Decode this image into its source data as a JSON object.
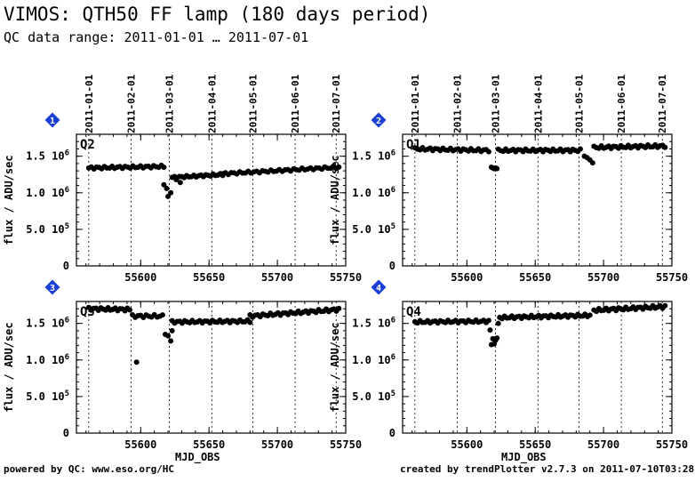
{
  "header": {
    "title": "VIMOS: QTH50 FF lamp (180 days period)",
    "subtitle": "QC data range: 2011-01-01 … 2011-07-01"
  },
  "footer": {
    "left": "powered by QC: www.eso.org/HC",
    "right": "created by trendPlotter v2.7.3 on 2011-07-10T03:28:38"
  },
  "colors": {
    "marker": "#000000",
    "badge": "#1a3fd6",
    "axis": "#000000"
  },
  "chart_data": {
    "type": "scatter",
    "xlabel": "MJD_OBS",
    "ylabel": "flux / ADU/sec",
    "xlim": [
      55553,
      55750
    ],
    "ylim": [
      0,
      1800000
    ],
    "x_ticks": [
      55600,
      55650,
      55700,
      55750
    ],
    "y_ticks": [
      {
        "v": 0,
        "label": "0"
      },
      {
        "v": 500000,
        "label": "5.0 10⁵"
      },
      {
        "v": 1000000,
        "label": "1.0 10⁶"
      },
      {
        "v": 1500000,
        "label": "1.5 10⁶"
      }
    ],
    "date_markers": [
      {
        "mjd": 55562,
        "label": "2011-01-01"
      },
      {
        "mjd": 55593,
        "label": "2011-02-01"
      },
      {
        "mjd": 55621,
        "label": "2011-03-01"
      },
      {
        "mjd": 55652,
        "label": "2011-04-01"
      },
      {
        "mjd": 55682,
        "label": "2011-05-01"
      },
      {
        "mjd": 55713,
        "label": "2011-06-01"
      },
      {
        "mjd": 55743,
        "label": "2011-07-01"
      }
    ],
    "panels": [
      {
        "badge": "1",
        "name": "Q2",
        "segments": [
          {
            "x0": 55562,
            "x1": 55617,
            "y0": 1340000,
            "y1": 1360000,
            "n": 30
          },
          {
            "x0": 55623,
            "x1": 55660,
            "y0": 1210000,
            "y1": 1250000,
            "n": 22
          },
          {
            "x0": 55660,
            "x1": 55745,
            "y0": 1260000,
            "y1": 1350000,
            "n": 42
          }
        ],
        "points": [
          [
            55617,
            1110000
          ],
          [
            55619,
            1060000
          ],
          [
            55620,
            950000
          ],
          [
            55622,
            1000000
          ],
          [
            55626,
            1180000
          ],
          [
            55629,
            1140000
          ]
        ]
      },
      {
        "badge": "2",
        "name": "Q1",
        "segments": [
          {
            "x0": 55562,
            "x1": 55616,
            "y0": 1600000,
            "y1": 1580000,
            "n": 30
          },
          {
            "x0": 55623,
            "x1": 55683,
            "y0": 1580000,
            "y1": 1580000,
            "n": 34
          },
          {
            "x0": 55693,
            "x1": 55745,
            "y0": 1620000,
            "y1": 1640000,
            "n": 30
          }
        ],
        "points": [
          [
            55618,
            1350000
          ],
          [
            55619,
            1340000
          ],
          [
            55620,
            1330000
          ],
          [
            55621,
            1340000
          ],
          [
            55622,
            1330000
          ],
          [
            55686,
            1500000
          ],
          [
            55688,
            1480000
          ],
          [
            55690,
            1450000
          ],
          [
            55692,
            1410000
          ]
        ]
      },
      {
        "badge": "3",
        "name": "Q3",
        "segments": [
          {
            "x0": 55562,
            "x1": 55592,
            "y0": 1700000,
            "y1": 1690000,
            "n": 18
          },
          {
            "x0": 55594,
            "x1": 55616,
            "y0": 1600000,
            "y1": 1600000,
            "n": 12
          },
          {
            "x0": 55623,
            "x1": 55680,
            "y0": 1520000,
            "y1": 1530000,
            "n": 32
          },
          {
            "x0": 55680,
            "x1": 55745,
            "y0": 1600000,
            "y1": 1690000,
            "n": 36
          }
        ],
        "points": [
          [
            55597,
            970000
          ],
          [
            55618,
            1350000
          ],
          [
            55620,
            1330000
          ],
          [
            55622,
            1260000
          ],
          [
            55623,
            1400000
          ]
        ]
      },
      {
        "badge": "4",
        "name": "Q4",
        "segments": [
          {
            "x0": 55562,
            "x1": 55616,
            "y0": 1520000,
            "y1": 1530000,
            "n": 30
          },
          {
            "x0": 55624,
            "x1": 55690,
            "y0": 1580000,
            "y1": 1610000,
            "n": 38
          },
          {
            "x0": 55693,
            "x1": 55745,
            "y0": 1680000,
            "y1": 1730000,
            "n": 30
          }
        ],
        "points": [
          [
            55617,
            1410000
          ],
          [
            55618,
            1210000
          ],
          [
            55619,
            1290000
          ],
          [
            55620,
            1220000
          ],
          [
            55621,
            1270000
          ],
          [
            55622,
            1300000
          ],
          [
            55623,
            1500000
          ]
        ]
      }
    ]
  }
}
